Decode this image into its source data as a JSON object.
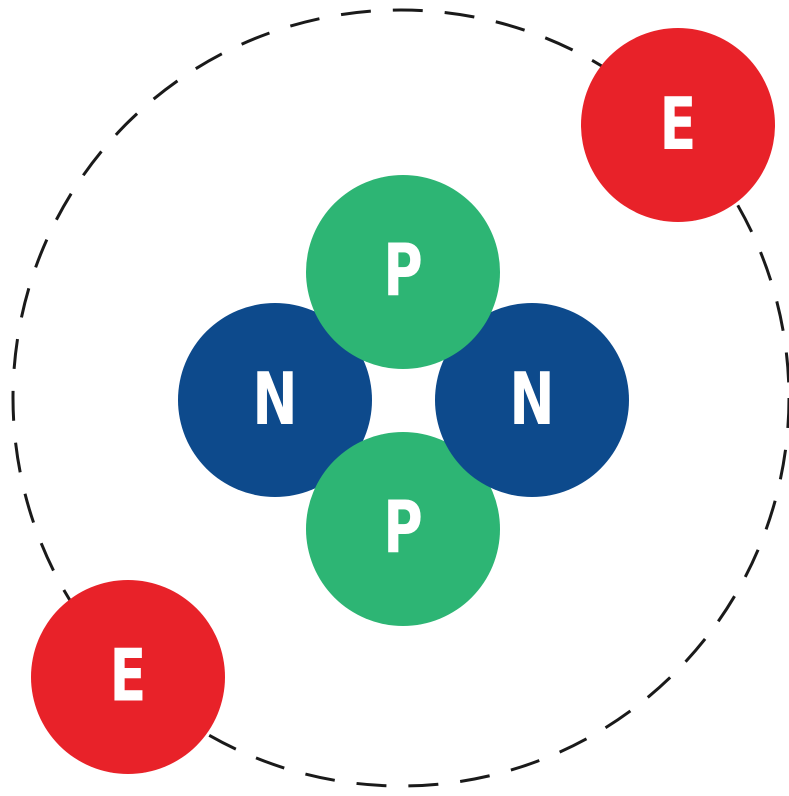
{
  "nodes": [
    {
      "label": "E"
    },
    {
      "label": "E"
    },
    {
      "label": "N"
    },
    {
      "label": "N"
    },
    {
      "label": "P"
    },
    {
      "label": "P"
    }
  ]
}
